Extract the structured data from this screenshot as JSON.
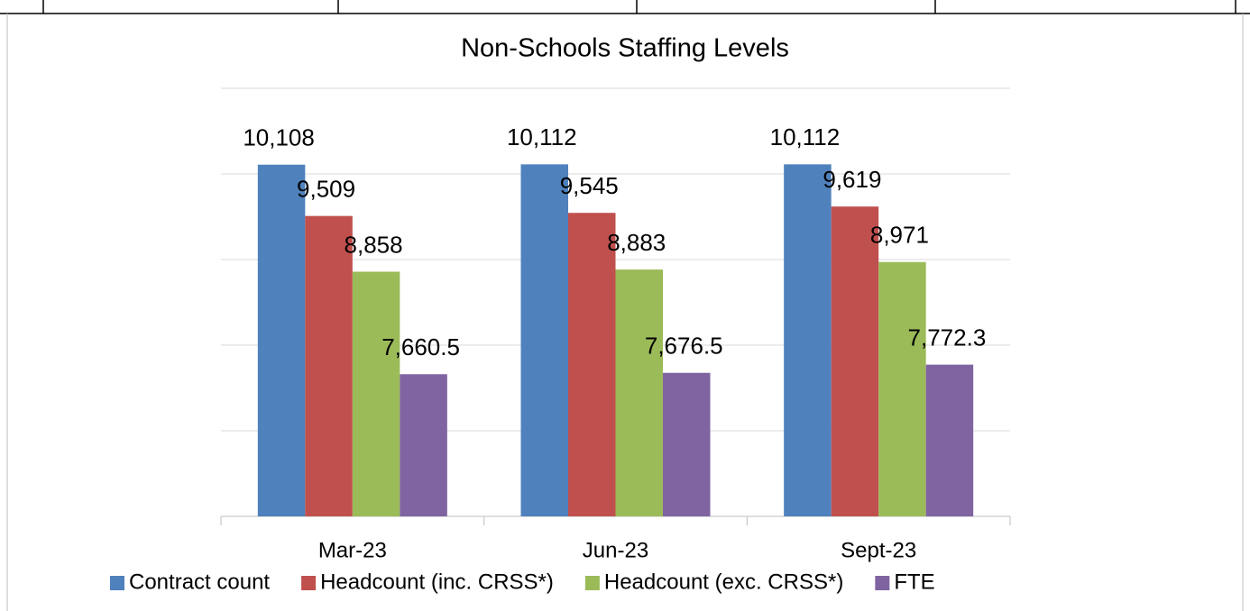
{
  "chart_data": {
    "type": "bar",
    "title": "Non-Schools Staffing Levels",
    "categories": [
      "Mar-23",
      "Jun-23",
      "Sept-23"
    ],
    "series": [
      {
        "name": "Contract count",
        "color": "#4f81bd",
        "values": [
          10108,
          10112,
          10112
        ],
        "value_labels": [
          "10,108",
          "10,112",
          "10,112"
        ]
      },
      {
        "name": "Headcount (inc. CRSS*)",
        "color": "#c0504d",
        "values": [
          9509,
          9545,
          9619
        ],
        "value_labels": [
          "9,509",
          "9,545",
          "9,619"
        ]
      },
      {
        "name": "Headcount (exc. CRSS*)",
        "color": "#9bbb59",
        "values": [
          8858,
          8883,
          8971
        ],
        "value_labels": [
          "8,858",
          "8,883",
          "8,971"
        ]
      },
      {
        "name": "FTE",
        "color": "#8064a2",
        "values": [
          7660.5,
          7676.5,
          7772.3
        ],
        "value_labels": [
          "7,660.5",
          "7,676.5",
          "7,772.3"
        ]
      }
    ],
    "ylim": [
      6000,
      11000
    ],
    "yticks": [
      6000,
      7000,
      8000,
      9000,
      10000,
      11000
    ],
    "grid": true,
    "legend": "bottom"
  }
}
